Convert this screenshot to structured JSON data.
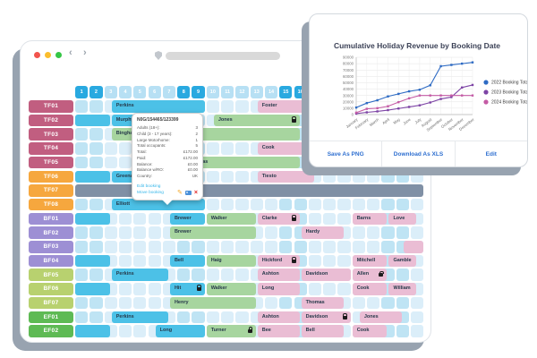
{
  "browser_window": {
    "nav": {
      "back": "‹",
      "forward": "›"
    },
    "url_bar": {
      "value": ""
    }
  },
  "booking_grid": {
    "day_count": 24,
    "weekend_days": [
      1,
      2,
      8,
      9,
      15,
      16,
      22,
      23
    ],
    "booking_colors": {
      "blue": "#4cc1e7",
      "green": "#a7d59f",
      "pink": "#eabdd4",
      "closed": "#8090a5"
    },
    "rows": [
      {
        "code": "TF01",
        "color": "#c15e80",
        "bookings": [
          {
            "name": "Perkins",
            "type": "blue",
            "start": 3.5,
            "span": 6.5
          },
          {
            "name": "Foster",
            "type": "pink",
            "start": 13.5,
            "span": 4
          }
        ]
      },
      {
        "code": "TF02",
        "color": "#c15e80",
        "bookings": [
          {
            "name": "",
            "type": "blue",
            "start": 1,
            "span": 2.5
          },
          {
            "name": "Murphy",
            "type": "blue",
            "start": 3.5,
            "span": 5
          },
          {
            "name": "Jones",
            "type": "green",
            "start": 10.5,
            "span": 6,
            "lock": true
          }
        ]
      },
      {
        "code": "TF03",
        "color": "#c15e80",
        "bookings": [
          {
            "name": "Bingham",
            "type": "green",
            "start": 3.5,
            "span": 2
          },
          {
            "name": "",
            "type": "green",
            "start": 6.5,
            "span": 10
          }
        ]
      },
      {
        "code": "TF04",
        "color": "#c15e80",
        "bookings": [
          {
            "name": "Cook",
            "type": "pink",
            "start": 13.5,
            "span": 4
          }
        ]
      },
      {
        "code": "TF05",
        "color": "#c15e80",
        "bookings": [
          {
            "name": "Thomas",
            "type": "green",
            "start": 8.5,
            "span": 8
          }
        ]
      },
      {
        "code": "TF06",
        "color": "#f6a73e",
        "bookings": [
          {
            "name": "",
            "type": "blue",
            "start": 1,
            "span": 2.5
          },
          {
            "name": "Greenaway",
            "type": "blue",
            "start": 3.5,
            "span": 5
          },
          {
            "name": "Tiesto",
            "type": "pink",
            "start": 13.5,
            "span": 4
          }
        ]
      },
      {
        "code": "TF07",
        "color": "#f6a73e",
        "closed": true,
        "bookings": []
      },
      {
        "code": "TF08",
        "color": "#f6a73e",
        "bookings": [
          {
            "name": "Elliott",
            "type": "blue",
            "start": 3.5,
            "span": 6.5
          }
        ]
      },
      {
        "code": "BF01",
        "color": "#9d8fd4",
        "bookings": [
          {
            "name": "",
            "type": "blue",
            "start": 1,
            "span": 2.5
          },
          {
            "name": "Brewer",
            "type": "blue",
            "start": 7.5,
            "span": 2.5
          },
          {
            "name": "Walker",
            "type": "green",
            "start": 10,
            "span": 3.5
          },
          {
            "name": "Clarke",
            "type": "pink",
            "start": 13.5,
            "span": 3,
            "lock": true
          },
          {
            "name": "Barns",
            "type": "pink",
            "start": 20,
            "span": 2.5
          },
          {
            "name": "Love",
            "type": "pink",
            "start": 22.5,
            "span": 2
          }
        ]
      },
      {
        "code": "BF02",
        "color": "#9d8fd4",
        "bookings": [
          {
            "name": "Brewer",
            "type": "green",
            "start": 7.5,
            "span": 6
          },
          {
            "name": "Hardy",
            "type": "pink",
            "start": 16.5,
            "span": 3
          }
        ]
      },
      {
        "code": "BF03",
        "color": "#9d8fd4",
        "bookings": [
          {
            "name": "",
            "type": "pink",
            "start": 23.5,
            "span": 1.5
          }
        ]
      },
      {
        "code": "BF04",
        "color": "#9d8fd4",
        "bookings": [
          {
            "name": "",
            "type": "blue",
            "start": 1,
            "span": 2.5
          },
          {
            "name": "Bell",
            "type": "blue",
            "start": 7.5,
            "span": 2.5
          },
          {
            "name": "Haig",
            "type": "green",
            "start": 10,
            "span": 3.5
          },
          {
            "name": "Hickford",
            "type": "pink",
            "start": 13.5,
            "span": 3,
            "lock": true
          },
          {
            "name": "Mitchell",
            "type": "pink",
            "start": 20,
            "span": 2.5
          },
          {
            "name": "Gamble",
            "type": "pink",
            "start": 22.5,
            "span": 2
          }
        ]
      },
      {
        "code": "BF05",
        "color": "#b8d16f",
        "bookings": [
          {
            "name": "Perkins",
            "type": "blue",
            "start": 3.5,
            "span": 4
          },
          {
            "name": "Ashton",
            "type": "pink",
            "start": 13.5,
            "span": 3
          },
          {
            "name": "Davidson",
            "type": "pink",
            "start": 16.5,
            "span": 3.5
          },
          {
            "name": "Allen",
            "type": "pink",
            "start": 20,
            "span": 2.5,
            "lock": true
          }
        ]
      },
      {
        "code": "BF06",
        "color": "#b8d16f",
        "bookings": [
          {
            "name": "",
            "type": "blue",
            "start": 1,
            "span": 2.5
          },
          {
            "name": "Hit",
            "type": "blue",
            "start": 7.5,
            "span": 2.5,
            "lock": true
          },
          {
            "name": "Walker",
            "type": "green",
            "start": 10,
            "span": 3.5
          },
          {
            "name": "Long",
            "type": "pink",
            "start": 13.5,
            "span": 3
          },
          {
            "name": "Cook",
            "type": "pink",
            "start": 20,
            "span": 2.5
          },
          {
            "name": "William",
            "type": "pink",
            "start": 22.5,
            "span": 2
          }
        ]
      },
      {
        "code": "BF07",
        "color": "#b8d16f",
        "bookings": [
          {
            "name": "Henry",
            "type": "green",
            "start": 7.5,
            "span": 6
          },
          {
            "name": "Thomas",
            "type": "pink",
            "start": 16.5,
            "span": 3
          }
        ]
      },
      {
        "code": "EF01",
        "color": "#5eba54",
        "bookings": [
          {
            "name": "Perkins",
            "type": "blue",
            "start": 3.5,
            "span": 4
          },
          {
            "name": "Ashton",
            "type": "pink",
            "start": 13.5,
            "span": 3
          },
          {
            "name": "Davidson",
            "type": "pink",
            "start": 16.5,
            "span": 3.5,
            "lock": true
          },
          {
            "name": "Jones",
            "type": "pink",
            "start": 20.5,
            "span": 3
          }
        ]
      },
      {
        "code": "EF02",
        "color": "#5eba54",
        "bookings": [
          {
            "name": "",
            "type": "blue",
            "start": 1,
            "span": 2.5
          },
          {
            "name": "Long",
            "type": "blue",
            "start": 6.5,
            "span": 3.5
          },
          {
            "name": "Turner",
            "type": "green",
            "start": 10,
            "span": 3.5,
            "lock": true
          },
          {
            "name": "Bee",
            "type": "pink",
            "start": 13.5,
            "span": 3
          },
          {
            "name": "Bell",
            "type": "pink",
            "start": 16.5,
            "span": 3
          },
          {
            "name": "Cook",
            "type": "pink",
            "start": 20,
            "span": 2.5
          }
        ]
      }
    ]
  },
  "tooltip": {
    "reference": "N0G/154465/123399",
    "fields": [
      {
        "label": "Adults (18+):",
        "value": "3"
      },
      {
        "label": "Child (3 - 17 years):",
        "value": "2"
      },
      {
        "label": "Large Motorhome:",
        "value": "1"
      },
      {
        "label": "Total occupants:",
        "value": "5"
      },
      {
        "label": "Total:",
        "value": "£172.00"
      },
      {
        "label": "Paid:",
        "value": "£172.00"
      },
      {
        "label": "Balance:",
        "value": "£0.00"
      },
      {
        "label": "Balance w/RO:",
        "value": "£0.00"
      },
      {
        "label": "Country:",
        "value": "UK"
      }
    ],
    "links": [
      "Edit booking",
      "Move booking"
    ],
    "icons": [
      "edit-pencil-icon",
      "photo-icon",
      "delete-icon"
    ]
  },
  "chart_window": {
    "footer_buttons": [
      "Save As PNG",
      "Download As XLS",
      "Edit"
    ]
  },
  "chart_data": {
    "type": "line",
    "title": "Cumulative Holiday Revenue by Booking Date",
    "x": [
      "January",
      "February",
      "March",
      "April",
      "May",
      "June",
      "July",
      "August",
      "September",
      "October",
      "November",
      "December"
    ],
    "series": [
      {
        "name": "2022 Booking Total",
        "color": "#2e6bc4",
        "values": [
          11000,
          18000,
          22500,
          28500,
          32500,
          36500,
          39000,
          46000,
          76000,
          78000,
          80000,
          82000
        ]
      },
      {
        "name": "2023 Booking Total",
        "color": "#7d44a5",
        "values": [
          1500,
          3500,
          5000,
          7000,
          9500,
          12000,
          14500,
          19000,
          24500,
          27500,
          42500,
          46500
        ]
      },
      {
        "name": "2024 Booking Total",
        "color": "#c45ba5",
        "values": [
          3000,
          9000,
          10000,
          13000,
          19500,
          25500,
          30000,
          30000,
          30000,
          30000,
          30000,
          30000
        ]
      }
    ],
    "ylim": [
      0,
      90000
    ],
    "ytick_step": 10000,
    "grid": true,
    "legend_position": "right"
  }
}
